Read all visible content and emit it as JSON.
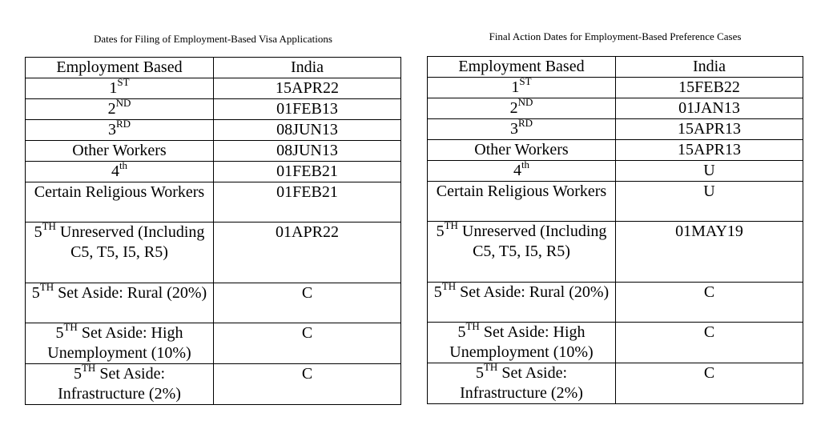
{
  "tables": [
    {
      "title": "Dates for Filing of Employment-Based Visa Applications",
      "header": [
        "Employment Based",
        "India"
      ],
      "rows": [
        {
          "pre": "1",
          "sup": "ST",
          "post": "",
          "value": "15APR22"
        },
        {
          "pre": "2",
          "sup": "ND",
          "post": "",
          "value": "01FEB13"
        },
        {
          "pre": "3",
          "sup": "RD",
          "post": "",
          "value": "08JUN13"
        },
        {
          "pre": "Other Workers",
          "sup": "",
          "post": "",
          "value": "08JUN13"
        },
        {
          "pre": "4",
          "sup": "th",
          "post": "",
          "value": "01FEB21"
        },
        {
          "pre": "Certain Religious Workers",
          "sup": "",
          "post": "",
          "value": "01FEB21"
        },
        {
          "pre": "5",
          "sup": "TH",
          "post": " Unreserved (Including C5, T5, I5, R5)",
          "value": "01APR22"
        },
        {
          "pre": "5",
          "sup": "TH",
          "post": " Set Aside: Rural (20%)",
          "value": "C"
        },
        {
          "pre": "5",
          "sup": "TH",
          "post": " Set Aside: High Unemployment (10%)",
          "value": "C"
        },
        {
          "pre": "5",
          "sup": "TH",
          "post": " Set Aside: Infrastructure (2%)",
          "value": "C"
        }
      ]
    },
    {
      "title": "Final Action Dates for Employment-Based Preference Cases",
      "header": [
        "Employment Based",
        "India"
      ],
      "rows": [
        {
          "pre": "1",
          "sup": "ST",
          "post": "",
          "value": "15FEB22"
        },
        {
          "pre": "2",
          "sup": "ND",
          "post": "",
          "value": "01JAN13"
        },
        {
          "pre": "3",
          "sup": "RD",
          "post": "",
          "value": "15APR13"
        },
        {
          "pre": "Other Workers",
          "sup": "",
          "post": "",
          "value": "15APR13"
        },
        {
          "pre": "4",
          "sup": "th",
          "post": "",
          "value": "U"
        },
        {
          "pre": "Certain Religious Workers",
          "sup": "",
          "post": "",
          "value": "U"
        },
        {
          "pre": "5",
          "sup": "TH",
          "post": " Unreserved (Including C5, T5, I5, R5)",
          "value": "01MAY19"
        },
        {
          "pre": "5",
          "sup": "TH",
          "post": " Set Aside: Rural (20%)",
          "value": "C"
        },
        {
          "pre": "5",
          "sup": "TH",
          "post": " Set Aside: High Unemployment (10%)",
          "value": "C"
        },
        {
          "pre": "5",
          "sup": "TH",
          "post": " Set Aside: Infrastructure (2%)",
          "value": "C"
        }
      ]
    }
  ]
}
